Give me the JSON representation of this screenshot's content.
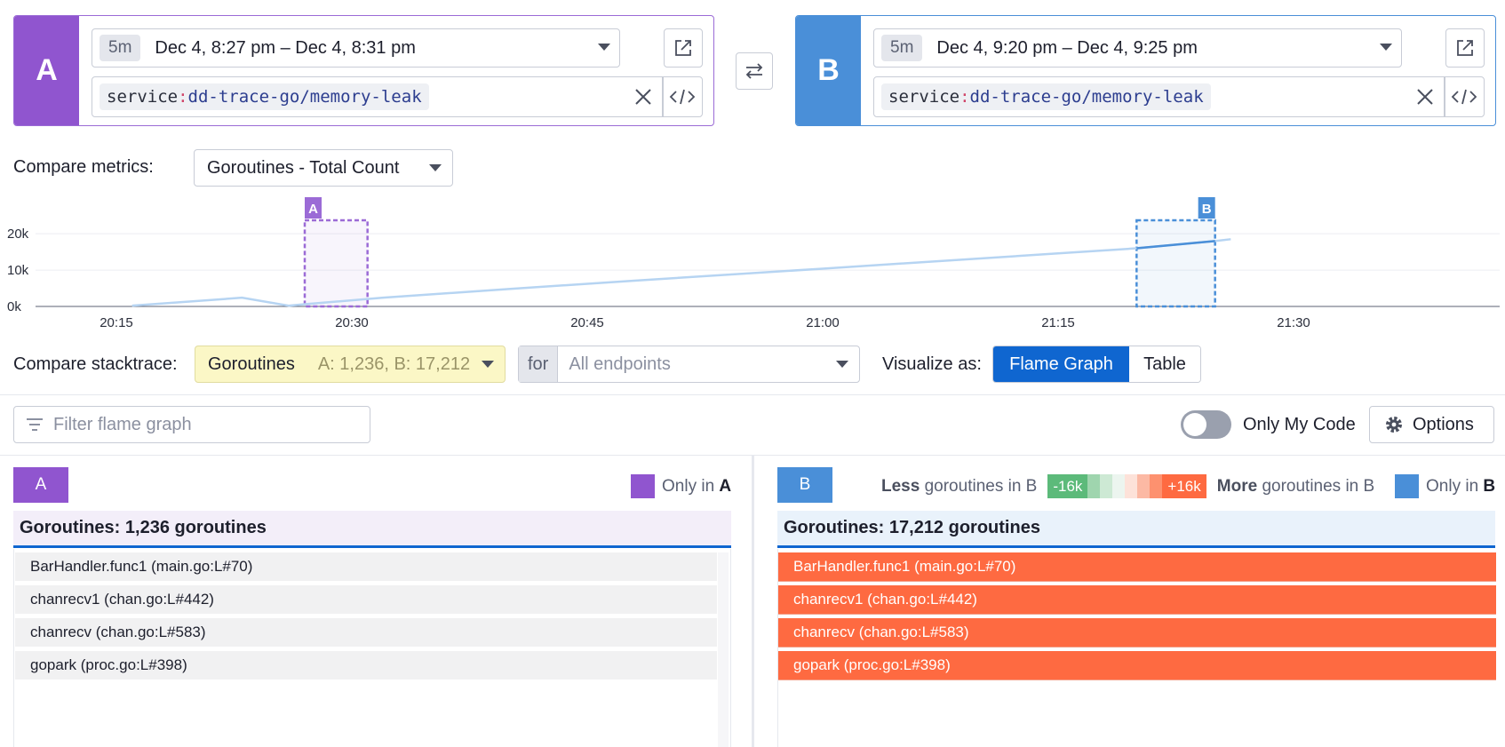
{
  "query_a": {
    "letter": "A",
    "duration": "5m",
    "time_range": "Dec 4, 8:27 pm – Dec 4, 8:31 pm",
    "query_key": "service",
    "query_sep": ":",
    "query_value": "dd-trace-go/memory-leak",
    "color": "#9055cf"
  },
  "query_b": {
    "letter": "B",
    "duration": "5m",
    "time_range": "Dec 4, 9:20 pm – Dec 4, 9:25 pm",
    "query_key": "service",
    "query_sep": ":",
    "query_value": "dd-trace-go/memory-leak",
    "color": "#4a8fd8"
  },
  "compare_metrics": {
    "label": "Compare metrics:",
    "value": "Goroutines - Total Count"
  },
  "chart_data": {
    "type": "line",
    "x_ticks": [
      "20:15",
      "20:30",
      "20:45",
      "21:00",
      "21:15",
      "21:30"
    ],
    "y_ticks": [
      "0k",
      "10k",
      "20k"
    ],
    "ylim": [
      0,
      22000
    ],
    "series": [
      {
        "x": [
          "20:16",
          "20:23",
          "20:26",
          "20:27",
          "20:32",
          "20:40",
          "20:48",
          "21:00",
          "21:15",
          "21:20",
          "21:25",
          "21:26"
        ],
        "values": [
          200,
          2400,
          200,
          600,
          2400,
          4800,
          7100,
          10400,
          14600,
          16000,
          18000,
          18500
        ]
      }
    ],
    "selections": [
      {
        "label": "A",
        "start": "20:27",
        "end": "20:31",
        "color": "#9b6bd6"
      },
      {
        "label": "B",
        "start": "21:20",
        "end": "21:25",
        "color": "#4a8fd8"
      }
    ]
  },
  "compare_stacktrace": {
    "label": "Compare stacktrace:",
    "value": "Goroutines",
    "counts": "A: 1,236, B: 17,212",
    "for_label": "for",
    "endpoints_placeholder": "All endpoints"
  },
  "visualize": {
    "label": "Visualize as:",
    "options": [
      "Flame Graph",
      "Table"
    ],
    "selected": "Flame Graph"
  },
  "filter": {
    "placeholder": "Filter flame graph"
  },
  "toggle": {
    "label": "Only My Code",
    "on": false
  },
  "options_button": "Options",
  "panel_a": {
    "badge": "A",
    "legend_prefix": "Only in",
    "legend_letter": "A",
    "header": "Goroutines: 1,236 goroutines",
    "frames": [
      "BarHandler.func1 (main.go:L#70)",
      "chanrecv1 (chan.go:L#442)",
      "chanrecv (chan.go:L#583)",
      "gopark (proc.go:L#398)"
    ]
  },
  "panel_b": {
    "badge": "B",
    "less_bold": "Less",
    "less_rest": "goroutines in B",
    "scale_min": "-16k",
    "scale_max": "+16k",
    "more_bold": "More",
    "more_rest": "goroutines in B",
    "legend_prefix": "Only in",
    "legend_letter": "B",
    "header": "Goroutines: 17,212 goroutines",
    "frames": [
      "BarHandler.func1 (main.go:L#70)",
      "chanrecv1 (chan.go:L#442)",
      "chanrecv (chan.go:L#583)",
      "gopark (proc.go:L#398)"
    ]
  }
}
